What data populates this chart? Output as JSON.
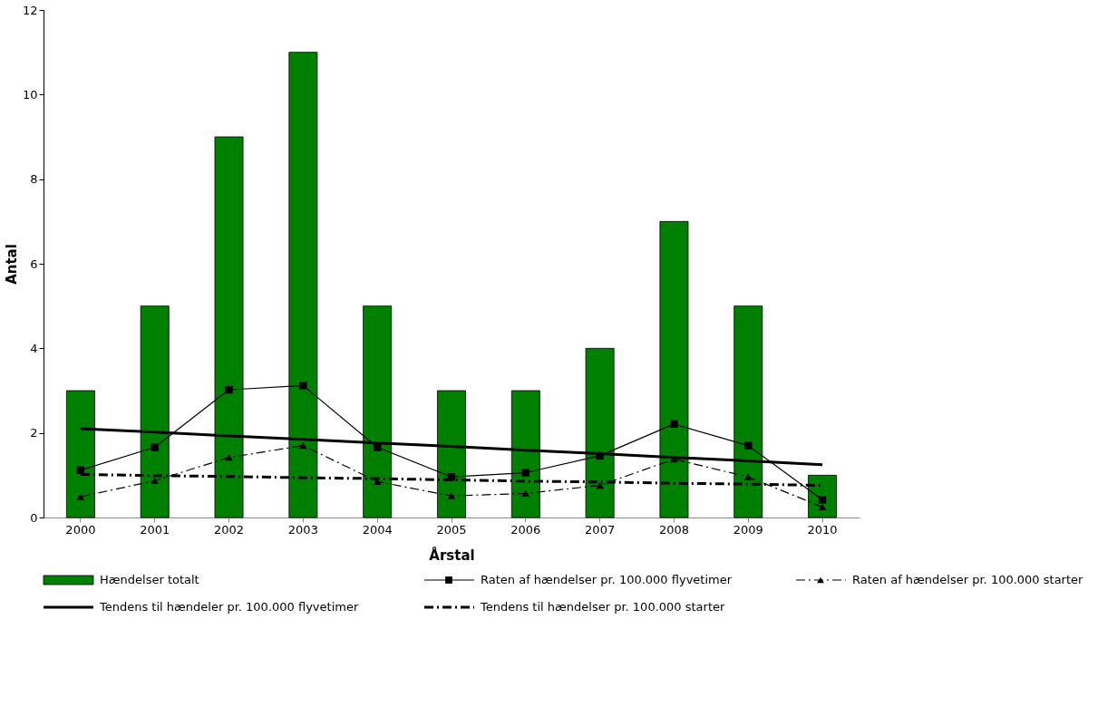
{
  "chart_data": {
    "type": "bar",
    "xlabel": "Årstal",
    "ylabel": "Antal",
    "categories": [
      "2000",
      "2001",
      "2002",
      "2003",
      "2004",
      "2005",
      "2006",
      "2007",
      "2008",
      "2009",
      "2010"
    ],
    "ylim": [
      0,
      12
    ],
    "yticks": [
      0,
      2,
      4,
      6,
      8,
      10,
      12
    ],
    "grid": false,
    "legend": "bottom",
    "series": [
      {
        "name": "Hændelser totalt",
        "color": "#008000",
        "values": [
          3,
          5,
          9,
          11,
          5,
          3,
          3,
          4,
          7,
          5,
          1
        ]
      },
      {
        "name": "Raten af hændelser pr. 100.000 flyvetimer",
        "type": "line",
        "color": "#000000",
        "marker": "square",
        "line_style": "solid",
        "values": [
          1.12,
          1.66,
          3.02,
          3.12,
          1.66,
          0.96,
          1.06,
          1.46,
          2.21,
          1.7,
          0.42
        ]
      },
      {
        "name": "Raten af hændelser pr. 100.000 starter",
        "type": "line",
        "color": "#000000",
        "marker": "triangle",
        "line_style": "dashed",
        "values": [
          0.49,
          0.87,
          1.42,
          1.7,
          0.85,
          0.51,
          0.57,
          0.76,
          1.38,
          0.96,
          0.25
        ]
      },
      {
        "name": "Tendens til hændeler pr. 100.000 flyvetimer",
        "type": "line",
        "color": "#000000",
        "marker": "none",
        "line_style": "solid",
        "values": [
          2.1,
          2.02,
          1.93,
          1.85,
          1.76,
          1.68,
          1.59,
          1.51,
          1.42,
          1.34,
          1.25
        ]
      },
      {
        "name": "Tendens til hændelser pr. 100.000 starter",
        "type": "line",
        "color": "#000000",
        "marker": "none",
        "line_style": "dashed",
        "values": [
          1.02,
          0.99,
          0.97,
          0.94,
          0.92,
          0.89,
          0.86,
          0.84,
          0.81,
          0.79,
          0.76
        ]
      }
    ]
  }
}
